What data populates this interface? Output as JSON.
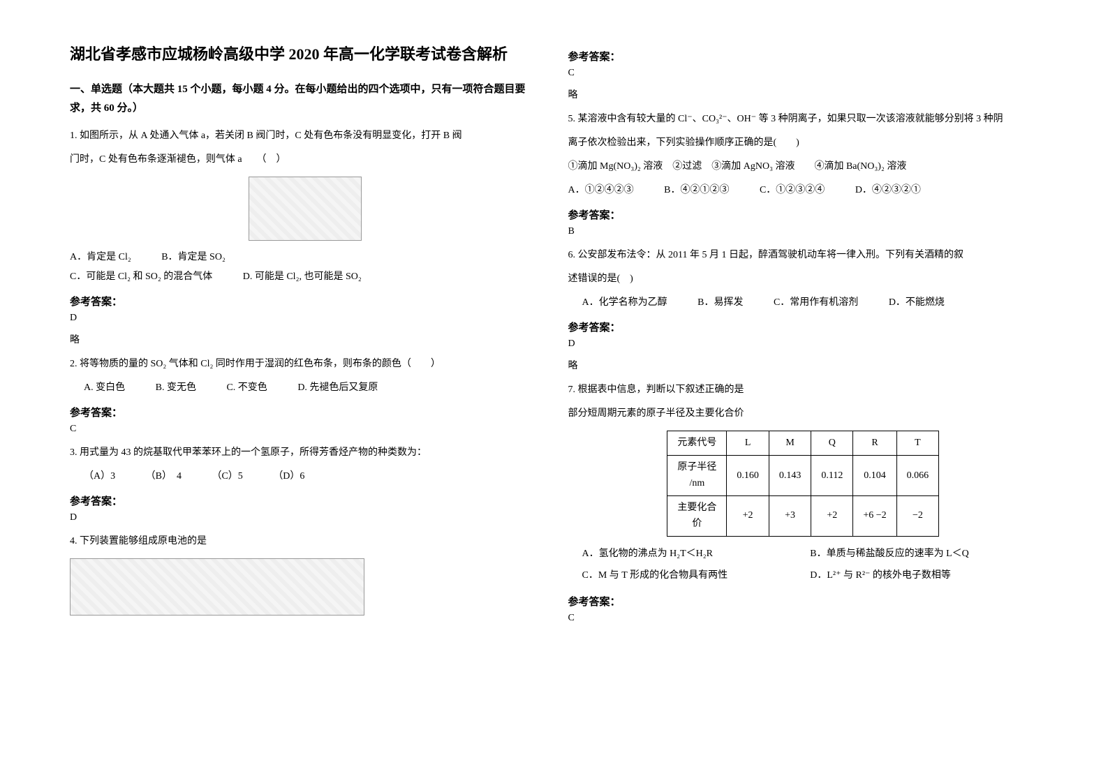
{
  "title": "湖北省孝感市应城杨岭高级中学 2020 年高一化学联考试卷含解析",
  "section1": "一、单选题（本大题共 15 个小题，每小题 4 分。在每小题给出的四个选项中，只有一项符合题目要求，共 60 分。）",
  "q1": {
    "stem1": "1. 如图所示，从 A 处通入气体 a，若关闭 B 阀门时，C 处有色布条没有明显变化，打开 B 阀",
    "stem2": "门时，C 处有色布条逐渐褪色，则气体 a　　（　）",
    "optA": "A．肯定是 Cl₂",
    "optB": "B．肯定是 SO₂",
    "optC": "C．可能是 Cl₂ 和 SO₂ 的混合气体",
    "optD": "D. 可能是 Cl₂, 也可能是 SO₂",
    "ref": "参考答案：",
    "ans": "D",
    "brief": "略"
  },
  "q2": {
    "stem": "2. 将等物质的量的 SO₂ 气体和 Cl₂ 同时作用于湿润的红色布条，则布条的颜色（　　）",
    "optA": "A. 变白色",
    "optB": "B. 变无色",
    "optC": "C. 不变色",
    "optD": "D. 先褪色后又复原",
    "ref": "参考答案：",
    "ans": "C"
  },
  "q3": {
    "stem": "3. 用式量为 43 的烷基取代甲苯苯环上的一个氢原子，所得芳香烃产物的种类数为：",
    "optA": "（A）3",
    "optB": "（B）　4",
    "optC": "（C）5",
    "optD": "（D）6",
    "ref": "参考答案：",
    "ans": "D"
  },
  "q4": {
    "stem": "4. 下列装置能够组成原电池的是",
    "ref": "参考答案：",
    "ans": "C",
    "brief": "略"
  },
  "q5": {
    "stem1": "5. 某溶液中含有较大量的 Cl⁻、CO₃²⁻、OH⁻ 等 3 种阴离子，如果只取一次该溶液就能够分别将 3 种阴",
    "stem2": "离子依次检验出来，下列实验操作顺序正确的是(　　)",
    "line": "①滴加 Mg(NO₃)₂ 溶液　②过滤　③滴加 AgNO₃ 溶液　　④滴加 Ba(NO₃)₂ 溶液",
    "optA": "A．①②④②③",
    "optB": "B．④②①②③",
    "optC": "C．①②③②④",
    "optD": "D．④②③②①",
    "ref": "参考答案：",
    "ans": "B"
  },
  "q6": {
    "stem1": "6. 公安部发布法令：从 2011 年 5 月 1 日起，醉酒驾驶机动车将一律入刑。下列有关酒精的叙",
    "stem2": "述错误的是(　)",
    "optA": "A．化学名称为乙醇",
    "optB": "B．易挥发",
    "optC": "C．常用作有机溶剂",
    "optD": "D．不能燃烧",
    "ref": "参考答案：",
    "ans": "D",
    "brief": "略"
  },
  "q7": {
    "stem": "7. 根据表中信息，判断以下叙述正确的是",
    "sub": "部分短周期元素的原子半径及主要化合价",
    "table": {
      "h1": "元素代号",
      "c1": "L",
      "c2": "M",
      "c3": "Q",
      "c4": "R",
      "c5": "T",
      "h2a": "原子半径",
      "h2b": "/nm",
      "r1": "0.160",
      "r2": "0.143",
      "r3": "0.112",
      "r4": "0.104",
      "r5": "0.066",
      "h3a": "主要化合",
      "h3b": "价",
      "v1": "+2",
      "v2": "+3",
      "v3": "+2",
      "v4": "+6  −2",
      "v5": "−2"
    },
    "optA": "A．氢化物的沸点为 H₂T＜H₂R",
    "optB": "B．单质与稀盐酸反应的速率为 L＜Q",
    "optC": "C．M 与 T 形成的化合物具有两性",
    "optD": "D．L²⁺ 与 R²⁻ 的核外电子数相等",
    "ref": "参考答案：",
    "ans": "C"
  }
}
